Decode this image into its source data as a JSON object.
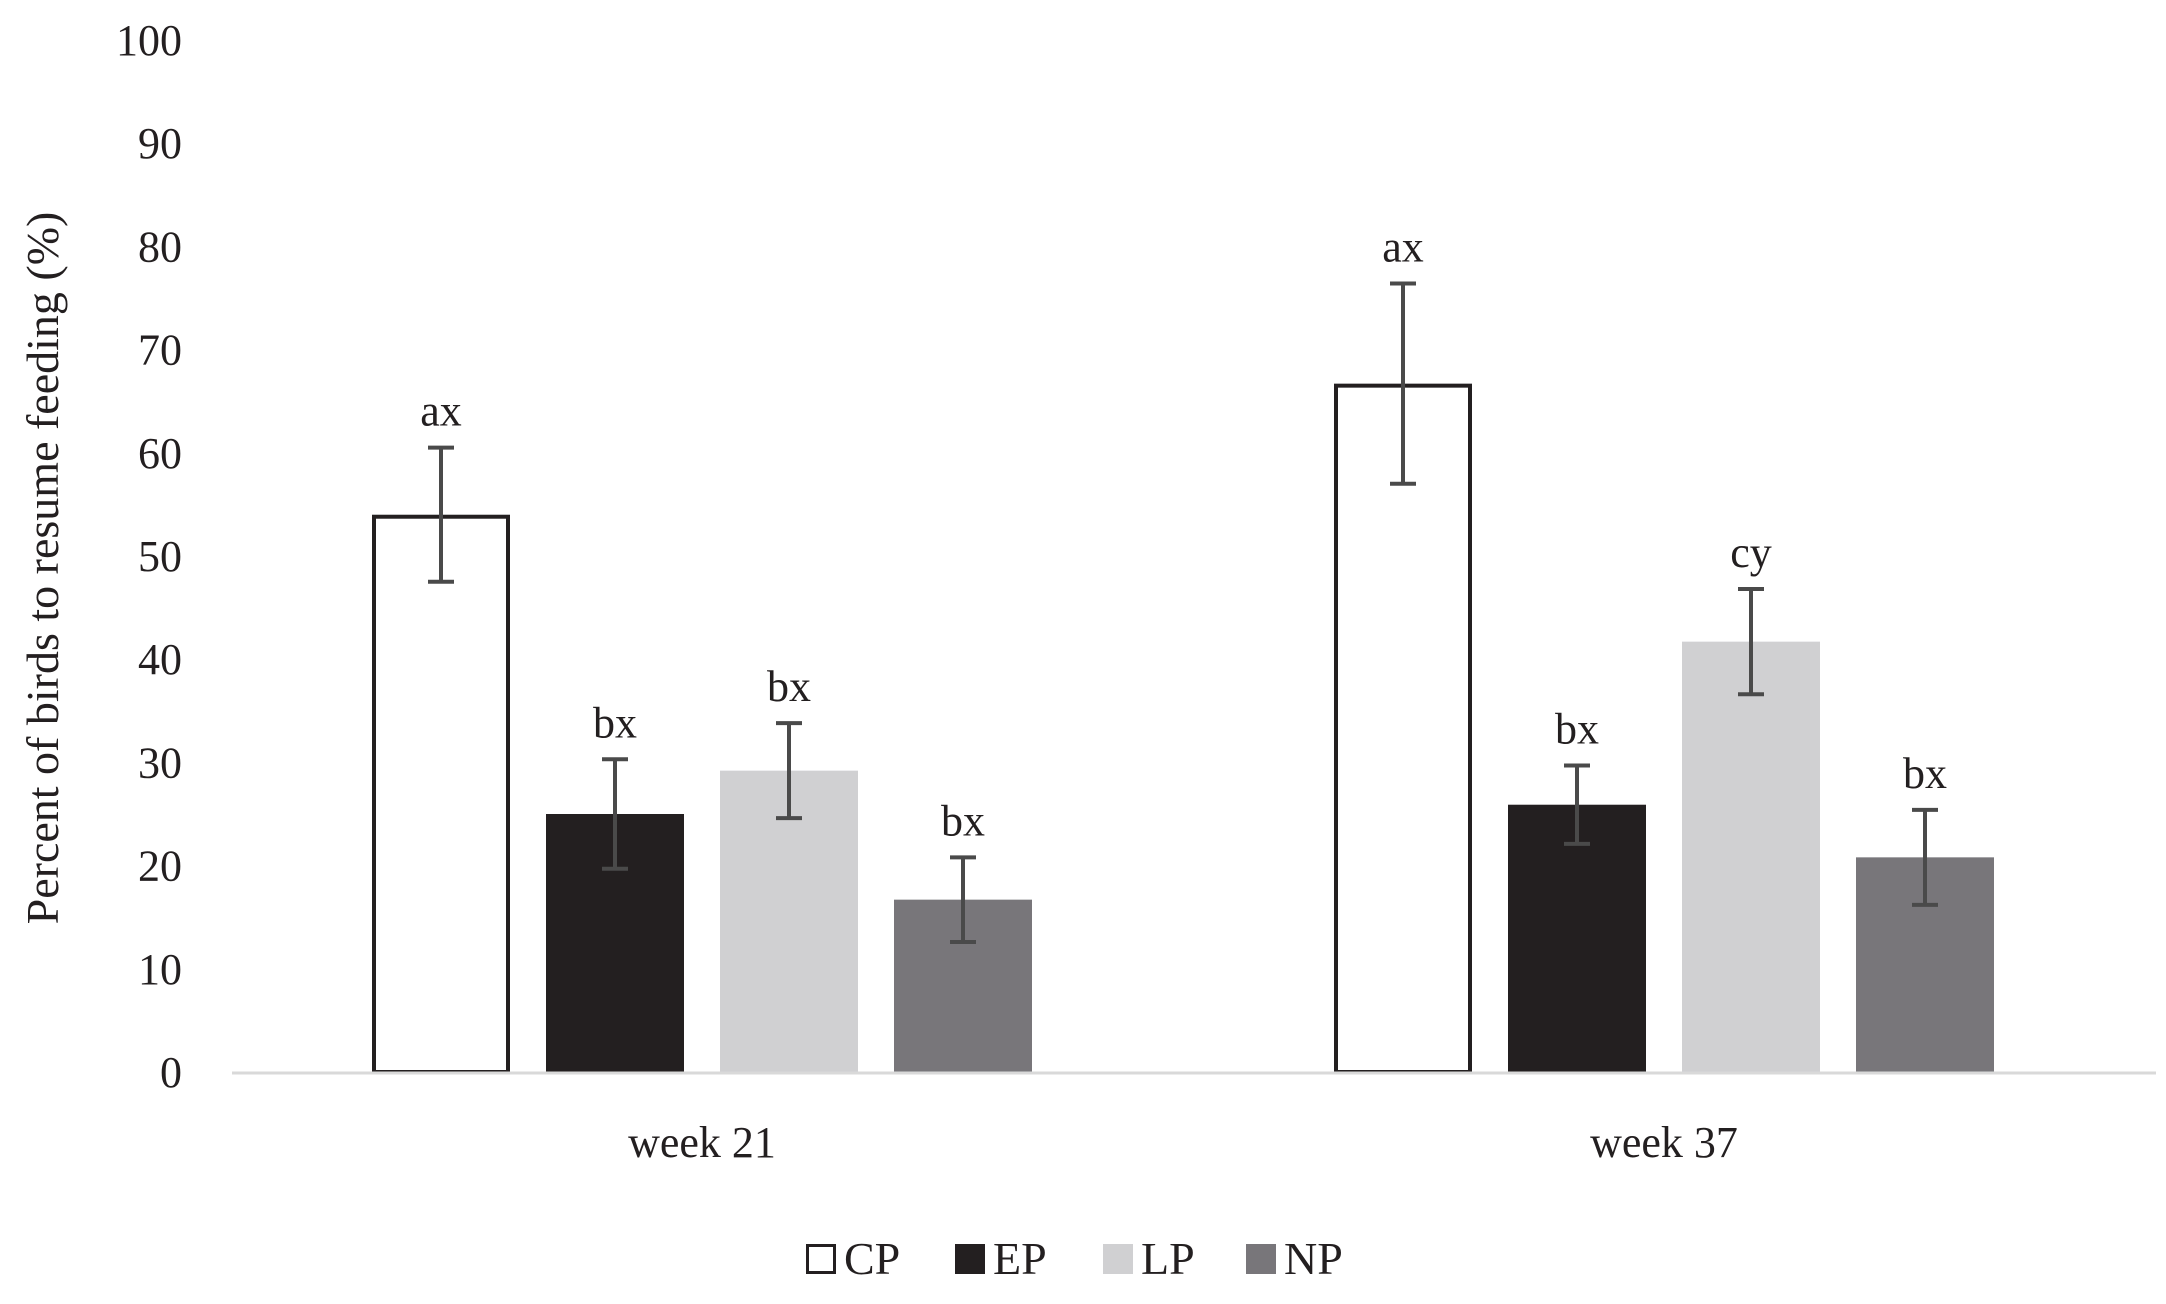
{
  "chart_data": {
    "type": "bar",
    "title": "",
    "xlabel": "",
    "ylabel": "Percent of birds to resume feeding (%)",
    "ylim": [
      0,
      100
    ],
    "yticks": [
      "0",
      "10",
      "20",
      "30",
      "40",
      "50",
      "60",
      "70",
      "80",
      "90",
      "100"
    ],
    "grid": false,
    "legend_position": "bottom",
    "categories": [
      "week 21",
      "week 37"
    ],
    "series": [
      {
        "name": "CP",
        "color": "#ffffff",
        "stroke": "#231f20",
        "values": [
          54,
          66.7
        ],
        "errors": [
          6.5,
          9.7
        ],
        "labels": [
          "ax",
          "ax"
        ]
      },
      {
        "name": "EP",
        "color": "#231f20",
        "stroke": "none",
        "values": [
          25,
          25.9
        ],
        "errors": [
          5.3,
          3.8
        ],
        "labels": [
          "bx",
          "bx"
        ]
      },
      {
        "name": "LP",
        "color": "#d0d0d2",
        "stroke": "none",
        "values": [
          29.2,
          41.7
        ],
        "errors": [
          4.6,
          5.1
        ],
        "labels": [
          "bx",
          "cy"
        ]
      },
      {
        "name": "NP",
        "color": "#78767a",
        "stroke": "none",
        "values": [
          16.7,
          20.8
        ],
        "errors": [
          4.1,
          4.6
        ],
        "labels": [
          "bx",
          "bx"
        ]
      }
    ],
    "axis_color": "#d9d9d9",
    "errorbar_color": "#4a4a4a"
  }
}
